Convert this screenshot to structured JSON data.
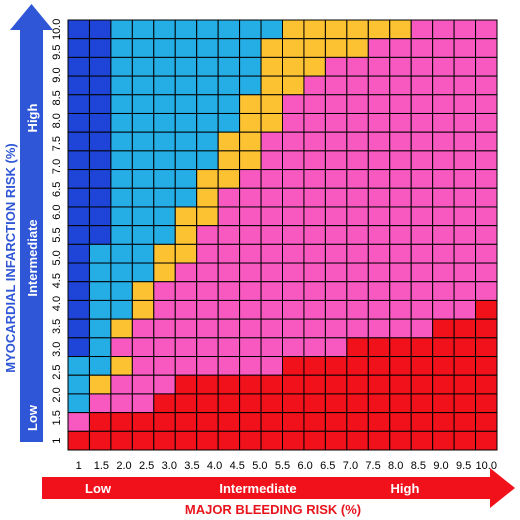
{
  "chart_data": {
    "type": "heatmap",
    "x_ticks": [
      "1",
      "1.5",
      "2.0",
      "2.5",
      "3.0",
      "3.5",
      "4.0",
      "4.5",
      "5.0",
      "5.5",
      "6.0",
      "6.5",
      "7.0",
      "7.5",
      "8.0",
      "8.5",
      "9.0",
      "9.5",
      "10.0"
    ],
    "y_ticks": [
      "1",
      "1.5",
      "2.0",
      "2.5",
      "3.0",
      "3.5",
      "4.0",
      "4.5",
      "5.0",
      "5.5",
      "6.0",
      "6.5",
      "7.0",
      "7.5",
      "8.0",
      "8.5",
      "9.0",
      "9.5",
      "10.0"
    ],
    "xlabel": "MAJOR BLEEDING RISK (%)",
    "ylabel": "MYOCARDIAL INFARCTION RISK (%)",
    "x_categories": [
      "Low",
      "Intermediate",
      "High"
    ],
    "y_categories": [
      "Low",
      "Intermediate",
      "High"
    ],
    "colors": {
      "0": "#1f45d8",
      "1": "#25aee6",
      "2": "#fcc232",
      "3": "#f759c0",
      "4": "#f0111b",
      "x_arrow": "#f0111b",
      "y_arrow": "#2f56d6",
      "grid": "#000000"
    },
    "grid": [
      [
        0,
        0,
        1,
        1,
        1,
        1,
        1,
        1,
        1,
        1,
        2,
        2,
        2,
        2,
        2,
        2,
        3,
        3,
        3,
        3
      ],
      [
        0,
        0,
        1,
        1,
        1,
        1,
        1,
        1,
        1,
        2,
        2,
        2,
        2,
        2,
        3,
        3,
        3,
        3,
        3,
        3
      ],
      [
        0,
        0,
        1,
        1,
        1,
        1,
        1,
        1,
        1,
        2,
        2,
        2,
        3,
        3,
        3,
        3,
        3,
        3,
        3,
        3
      ],
      [
        0,
        0,
        1,
        1,
        1,
        1,
        1,
        1,
        1,
        2,
        2,
        3,
        3,
        3,
        3,
        3,
        3,
        3,
        3,
        3
      ],
      [
        0,
        0,
        1,
        1,
        1,
        1,
        1,
        1,
        2,
        2,
        3,
        3,
        3,
        3,
        3,
        3,
        3,
        3,
        3,
        3
      ],
      [
        0,
        0,
        1,
        1,
        1,
        1,
        1,
        1,
        2,
        2,
        3,
        3,
        3,
        3,
        3,
        3,
        3,
        3,
        3,
        3
      ],
      [
        0,
        0,
        1,
        1,
        1,
        1,
        1,
        2,
        2,
        3,
        3,
        3,
        3,
        3,
        3,
        3,
        3,
        3,
        3,
        3
      ],
      [
        0,
        0,
        1,
        1,
        1,
        1,
        1,
        2,
        2,
        3,
        3,
        3,
        3,
        3,
        3,
        3,
        3,
        3,
        3,
        3
      ],
      [
        0,
        0,
        1,
        1,
        1,
        1,
        2,
        2,
        3,
        3,
        3,
        3,
        3,
        3,
        3,
        3,
        3,
        3,
        3,
        3
      ],
      [
        0,
        0,
        1,
        1,
        1,
        1,
        2,
        3,
        3,
        3,
        3,
        3,
        3,
        3,
        3,
        3,
        3,
        3,
        3,
        3
      ],
      [
        0,
        0,
        1,
        1,
        1,
        2,
        2,
        3,
        3,
        3,
        3,
        3,
        3,
        3,
        3,
        3,
        3,
        3,
        3,
        3
      ],
      [
        0,
        0,
        1,
        1,
        1,
        2,
        3,
        3,
        3,
        3,
        3,
        3,
        3,
        3,
        3,
        3,
        3,
        3,
        3,
        3
      ],
      [
        0,
        1,
        1,
        1,
        2,
        2,
        3,
        3,
        3,
        3,
        3,
        3,
        3,
        3,
        3,
        3,
        3,
        3,
        3,
        3
      ],
      [
        0,
        1,
        1,
        1,
        2,
        3,
        3,
        3,
        3,
        3,
        3,
        3,
        3,
        3,
        3,
        3,
        3,
        3,
        3,
        3
      ],
      [
        0,
        1,
        1,
        2,
        3,
        3,
        3,
        3,
        3,
        3,
        3,
        3,
        3,
        3,
        3,
        3,
        3,
        3,
        3,
        3
      ],
      [
        0,
        1,
        1,
        2,
        3,
        3,
        3,
        3,
        3,
        3,
        3,
        3,
        3,
        3,
        3,
        3,
        3,
        3,
        3,
        4
      ],
      [
        0,
        1,
        2,
        3,
        3,
        3,
        3,
        3,
        3,
        3,
        3,
        3,
        3,
        3,
        3,
        3,
        3,
        4,
        4,
        4
      ],
      [
        0,
        1,
        3,
        3,
        3,
        3,
        3,
        3,
        3,
        3,
        3,
        3,
        3,
        4,
        4,
        4,
        4,
        4,
        4,
        4
      ],
      [
        1,
        1,
        2,
        3,
        3,
        3,
        3,
        3,
        3,
        3,
        4,
        4,
        4,
        4,
        4,
        4,
        4,
        4,
        4,
        4
      ],
      [
        1,
        2,
        3,
        3,
        3,
        4,
        4,
        4,
        4,
        4,
        4,
        4,
        4,
        4,
        4,
        4,
        4,
        4,
        4,
        4
      ],
      [
        1,
        3,
        3,
        3,
        4,
        4,
        4,
        4,
        4,
        4,
        4,
        4,
        4,
        4,
        4,
        4,
        4,
        4,
        4,
        4
      ],
      [
        3,
        4,
        4,
        4,
        4,
        4,
        4,
        4,
        4,
        4,
        4,
        4,
        4,
        4,
        4,
        4,
        4,
        4,
        4,
        4
      ],
      [
        4,
        4,
        4,
        4,
        4,
        4,
        4,
        4,
        4,
        4,
        4,
        4,
        4,
        4,
        4,
        4,
        4,
        4,
        4,
        4
      ]
    ]
  }
}
